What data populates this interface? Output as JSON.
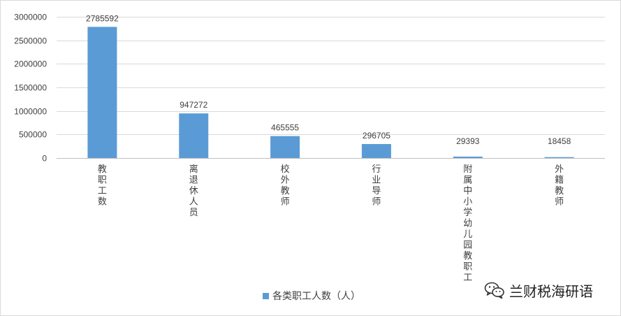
{
  "chart_data": {
    "type": "bar",
    "categories": [
      "教职工数",
      "离退休人员",
      "校外教师",
      "行业导师",
      "附属中小学幼儿园教职工",
      "外籍教师"
    ],
    "series": [
      {
        "name": "各类职工人数（人）",
        "values": [
          2785592,
          947272,
          465555,
          296705,
          29393,
          18458
        ]
      }
    ],
    "data_labels": [
      "2785592",
      "947272",
      "465555",
      "296705",
      "29393",
      "18458"
    ],
    "ylim": [
      0,
      3000000
    ],
    "yticks": [
      0,
      500000,
      1000000,
      1500000,
      2000000,
      2500000,
      3000000
    ],
    "ytick_labels": [
      "0",
      "500000",
      "1000000",
      "1500000",
      "2000000",
      "2500000",
      "3000000"
    ],
    "grid": true,
    "legend_position": "bottom",
    "bar_color": "#5b9bd5"
  },
  "watermark": {
    "text": "兰财税海研语",
    "icon": "wechat-icon"
  }
}
